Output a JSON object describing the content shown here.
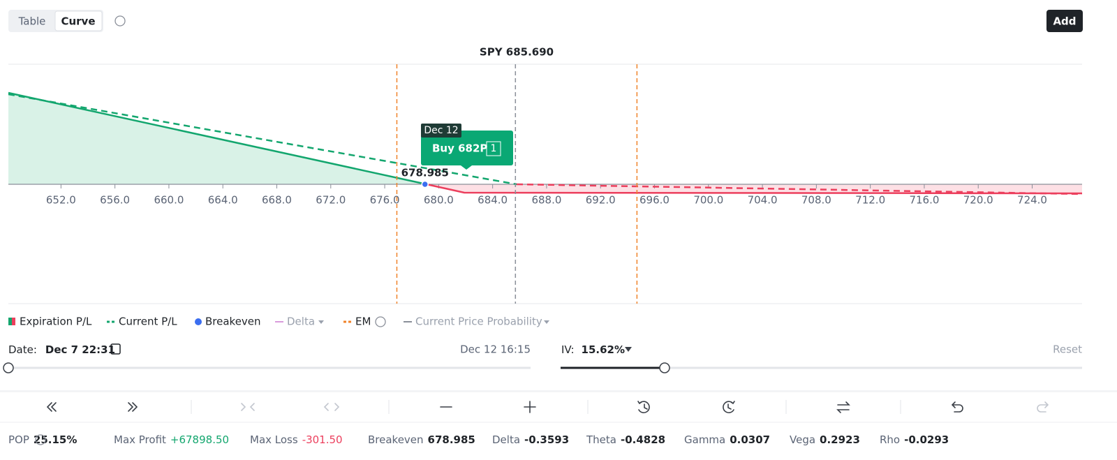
{
  "toolbar": {
    "tabs": [
      "Table",
      "Curve"
    ],
    "add": "Add"
  },
  "chart": {
    "type": "line",
    "spot_label": "SPY 685.690",
    "spot": 685.69,
    "xlim": [
      648.1,
      727.7
    ],
    "xticks": [
      {
        "value": 652,
        "label": "652.0"
      },
      {
        "value": 656,
        "label": "656.0"
      },
      {
        "value": 660,
        "label": "660.0"
      },
      {
        "value": 664,
        "label": "664.0"
      },
      {
        "value": 668,
        "label": "668.0"
      },
      {
        "value": 672,
        "label": "672.0"
      },
      {
        "value": 676,
        "label": "676.0"
      },
      {
        "value": 680,
        "label": "680.0"
      },
      {
        "value": 684,
        "label": "684.0"
      },
      {
        "value": 688,
        "label": "688.0"
      },
      {
        "value": 692,
        "label": "692.0"
      },
      {
        "value": 696,
        "label": "696.0"
      },
      {
        "value": 700,
        "label": "700.0"
      },
      {
        "value": 704,
        "label": "704.0"
      },
      {
        "value": 708,
        "label": "708.0"
      },
      {
        "value": 712,
        "label": "712.0"
      },
      {
        "value": 716,
        "label": "716.0"
      },
      {
        "value": 720,
        "label": "720.0"
      },
      {
        "value": 724,
        "label": "724.0"
      }
    ],
    "em": [
      676.9,
      694.7
    ],
    "breakeven": 678.985,
    "breakeven_label": "678.985",
    "tooltip": {
      "date": "Dec 12",
      "action": "Buy 682P",
      "qty": "1"
    }
  },
  "legend": [
    "Expiration P/L",
    "Current P/L",
    "Breakeven",
    "Delta",
    "EM",
    "Current Price Probability"
  ],
  "date": {
    "label": "Date:",
    "value": "Dec 7 22:31",
    "end": "Dec 12 16:15"
  },
  "iv": {
    "label": "IV:",
    "value": "15.62%",
    "reset": "Reset"
  },
  "stats": [
    {
      "label": "POP",
      "value": "25.15%"
    },
    {
      "label": "Max Profit",
      "value": "+67898.50"
    },
    {
      "label": "Max Loss",
      "value": "-301.50"
    },
    {
      "label": "Breakeven",
      "value": "678.985"
    },
    {
      "label": "Delta",
      "value": "-0.3593"
    },
    {
      "label": "Theta",
      "value": "-0.4828"
    },
    {
      "label": "Gamma",
      "value": "0.0307"
    },
    {
      "label": "Vega",
      "value": "0.2923"
    },
    {
      "label": "Rho",
      "value": "-0.0293"
    }
  ]
}
